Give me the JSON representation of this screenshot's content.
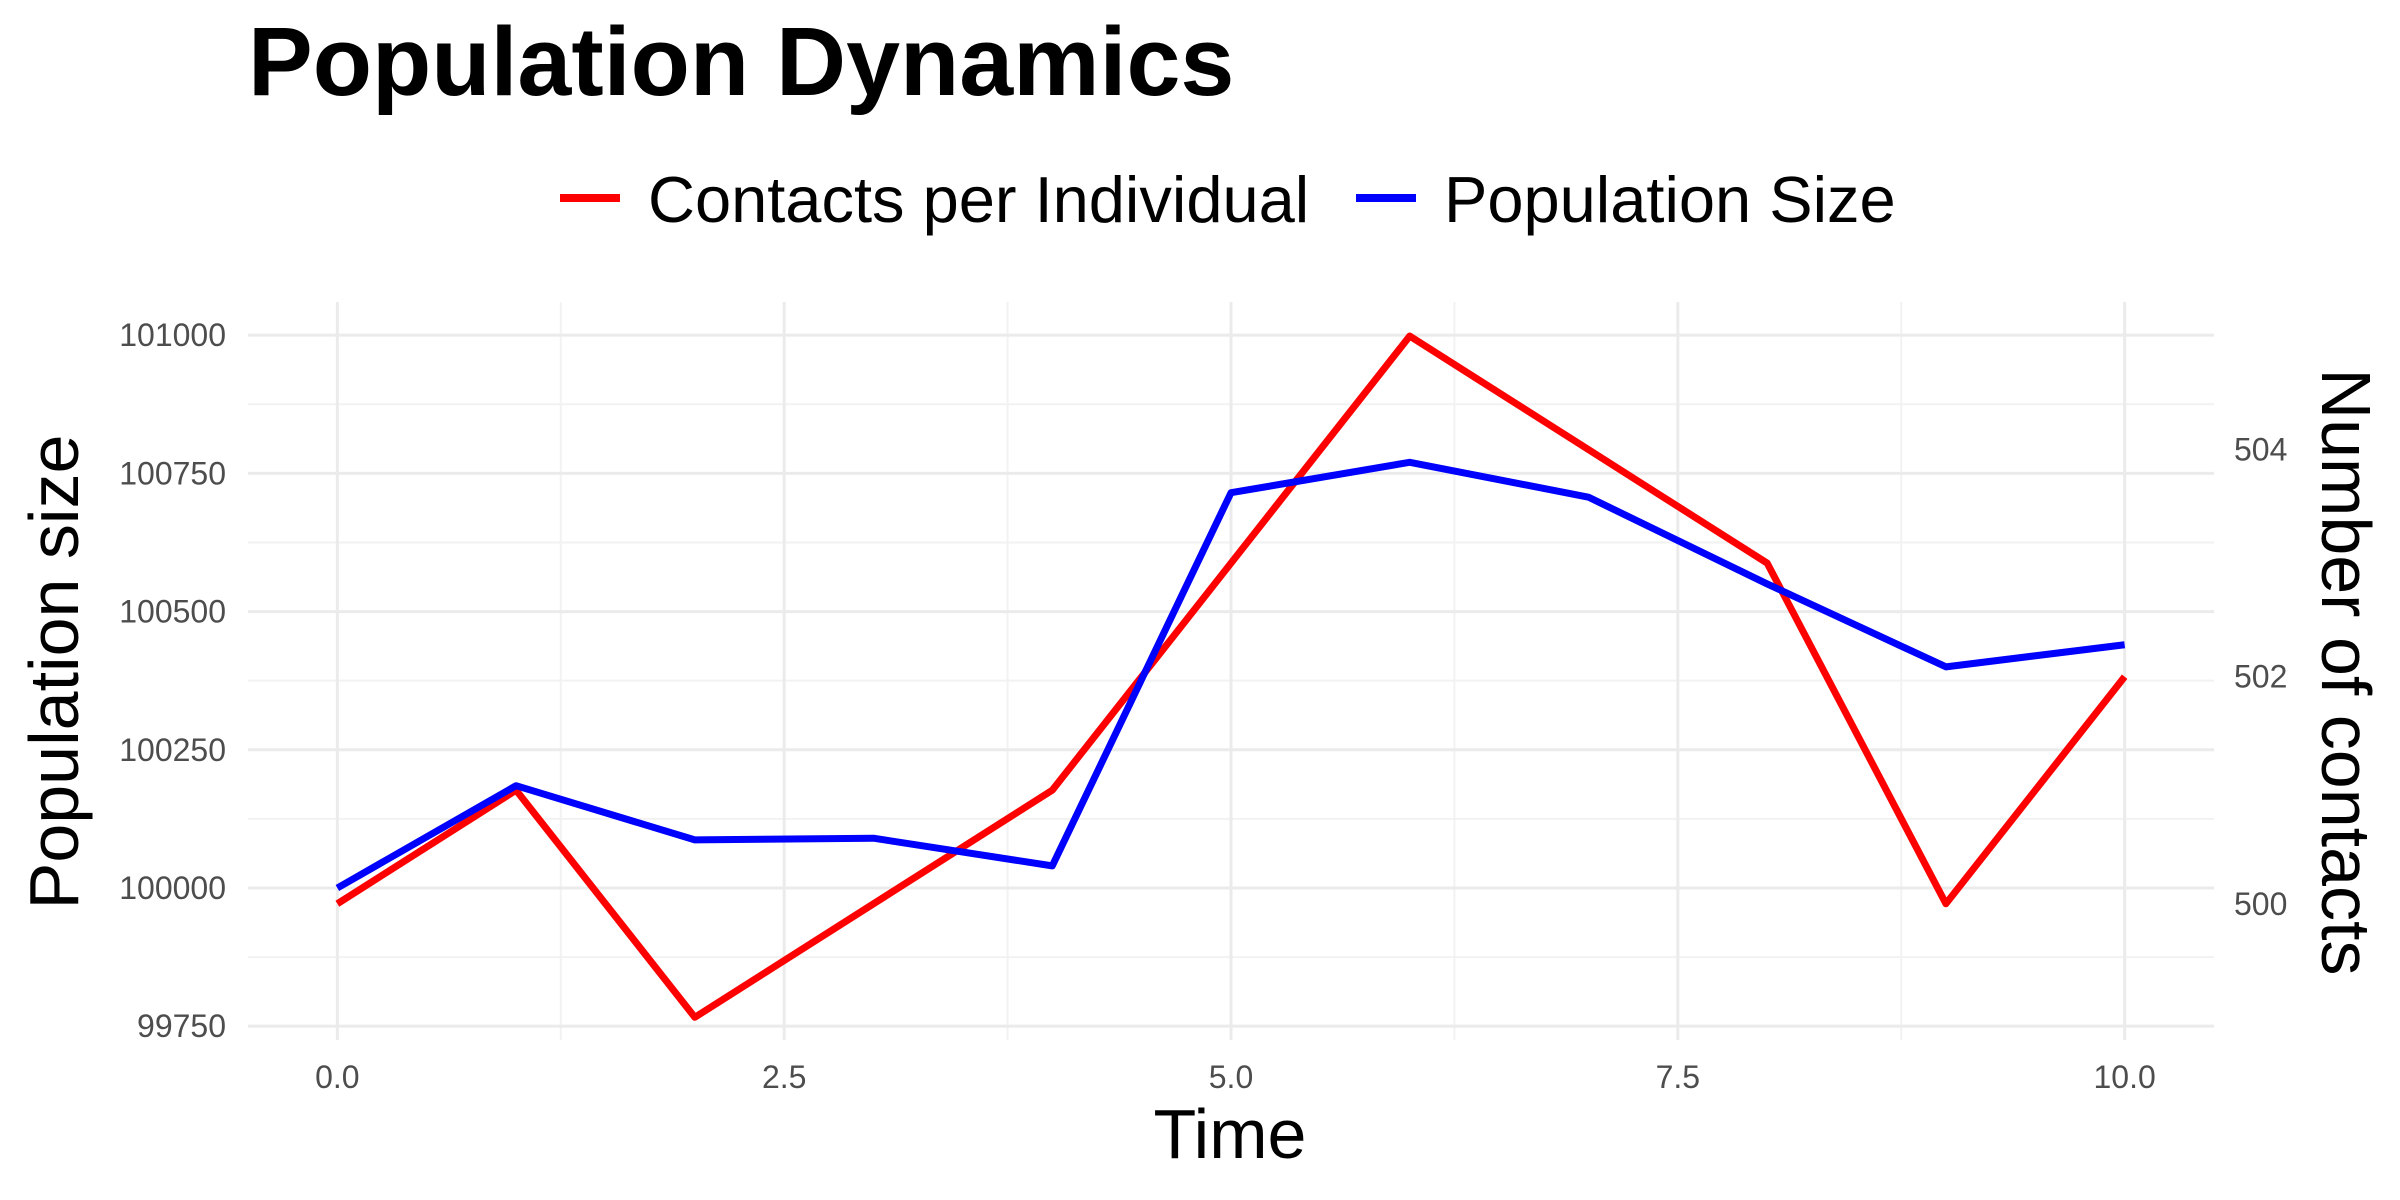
{
  "chart_data": {
    "type": "line",
    "title": "Population Dynamics",
    "xlabel": "Time",
    "ylabel": "Population size",
    "y2label": "Number of contacts",
    "x": [
      0,
      1,
      2,
      3,
      4,
      5,
      6,
      7,
      8,
      9,
      10
    ],
    "xlim": [
      -0.5,
      10.5
    ],
    "ylim": [
      99725,
      101060
    ],
    "y2lim": [
      498.8,
      505.3
    ],
    "x_ticks": [
      0,
      2.5,
      5,
      7.5,
      10
    ],
    "x_tick_labels": [
      "0.0",
      "2.5",
      "5.0",
      "7.5",
      "10.0"
    ],
    "y_ticks": [
      99750,
      100000,
      100250,
      100500,
      100750,
      101000
    ],
    "y_tick_labels": [
      "99750",
      "100000",
      "100250",
      "100500",
      "100750",
      "101000"
    ],
    "y2_ticks": [
      500,
      502,
      504
    ],
    "y2_tick_labels": [
      "500",
      "502",
      "504"
    ],
    "grid": true,
    "legend_position": "top",
    "series": [
      {
        "name": "Contacts per Individual",
        "axis": "right",
        "color": "#ff0000",
        "values": [
          500,
          501,
          499,
          500,
          501,
          503,
          505,
          504,
          503,
          500,
          502
        ]
      },
      {
        "name": "Population Size",
        "axis": "left",
        "color": "#0000ff",
        "values": [
          100000,
          100185,
          100087,
          100090,
          100040,
          100715,
          100770,
          100707,
          100550,
          100400,
          100440
        ]
      }
    ]
  }
}
